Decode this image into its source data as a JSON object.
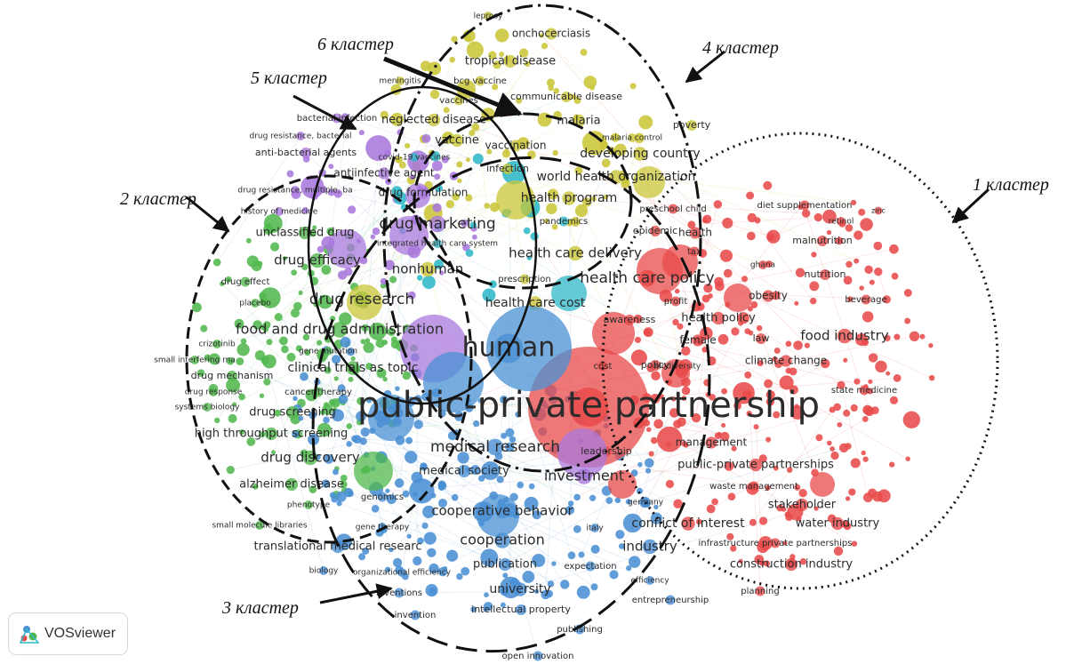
{
  "cluster_labels": {
    "c1": "1 кластер",
    "c2": "2 кластер",
    "c3": "3 кластер",
    "c4": "4 кластер",
    "c5": "5 кластер",
    "c6": "6 кластер"
  },
  "colors": {
    "red": "#e84a4a",
    "green": "#52b84e",
    "blue": "#4a90d4",
    "yellow": "#c9c638",
    "purple": "#a978dc",
    "cyan": "#2fb8c8"
  },
  "logo": {
    "text": "VOSviewer",
    "icon": "vosviewer-logo-icon"
  },
  "terms": [
    {
      "text": "leprosy",
      "c": "yellow",
      "s": 9
    },
    {
      "text": "onchocerciasis",
      "c": "yellow",
      "s": 12
    },
    {
      "text": "tropical disease",
      "c": "yellow",
      "s": 13
    },
    {
      "text": "meningitis",
      "c": "yellow",
      "s": 9
    },
    {
      "text": "bcg vaccine",
      "c": "yellow",
      "s": 10
    },
    {
      "text": "vaccines",
      "c": "yellow",
      "s": 10
    },
    {
      "text": "communicable disease",
      "c": "yellow",
      "s": 11
    },
    {
      "text": "bacterial infection",
      "c": "purple",
      "s": 10
    },
    {
      "text": "neglected disease",
      "c": "yellow",
      "s": 13
    },
    {
      "text": "malaria",
      "c": "yellow",
      "s": 13
    },
    {
      "text": "poverty",
      "c": "yellow",
      "s": 11
    },
    {
      "text": "drug resistance, bacterial",
      "c": "purple",
      "s": 9
    },
    {
      "text": "vaccine",
      "c": "yellow",
      "s": 13
    },
    {
      "text": "vaccination",
      "c": "yellow",
      "s": 12
    },
    {
      "text": "malaria control",
      "c": "yellow",
      "s": 9
    },
    {
      "text": "anti-bacterial agents",
      "c": "purple",
      "s": 11
    },
    {
      "text": "covid-19 vaccines",
      "c": "cyan",
      "s": 9
    },
    {
      "text": "developing country",
      "c": "yellow",
      "s": 14
    },
    {
      "text": "antiinfective agent",
      "c": "purple",
      "s": 12
    },
    {
      "text": "infection",
      "c": "yellow",
      "s": 11
    },
    {
      "text": "world health organization",
      "c": "yellow",
      "s": 14
    },
    {
      "text": "drug resistance, multiple, ba",
      "c": "purple",
      "s": 9
    },
    {
      "text": "drug formulation",
      "c": "purple",
      "s": 12
    },
    {
      "text": "health program",
      "c": "yellow",
      "s": 14
    },
    {
      "text": "history of medicine",
      "c": "purple",
      "s": 9
    },
    {
      "text": "preschool child",
      "c": "red",
      "s": 10
    },
    {
      "text": "diet supplementation",
      "c": "red",
      "s": 10
    },
    {
      "text": "zinc",
      "c": "red",
      "s": 8
    },
    {
      "text": "retinol",
      "c": "red",
      "s": 9
    },
    {
      "text": "drug marketing",
      "c": "purple",
      "s": 17
    },
    {
      "text": "pandemics",
      "c": "cyan",
      "s": 10
    },
    {
      "text": "unclassified drug",
      "c": "green",
      "s": 13
    },
    {
      "text": "integrated health care system",
      "c": "cyan",
      "s": 9
    },
    {
      "text": "epidemic",
      "c": "red",
      "s": 11
    },
    {
      "text": "health",
      "c": "red",
      "s": 12
    },
    {
      "text": "malnutrition",
      "c": "red",
      "s": 11
    },
    {
      "text": "health care delivery",
      "c": "yellow",
      "s": 15
    },
    {
      "text": "tax",
      "c": "red",
      "s": 10
    },
    {
      "text": "drug efficacy",
      "c": "green",
      "s": 15
    },
    {
      "text": "ghana",
      "c": "red",
      "s": 9
    },
    {
      "text": "nonhuman",
      "c": "yellow",
      "s": 15
    },
    {
      "text": "nutrition",
      "c": "red",
      "s": 11
    },
    {
      "text": "health care policy",
      "c": "red",
      "s": 17
    },
    {
      "text": "drug effect",
      "c": "green",
      "s": 10
    },
    {
      "text": "prescription",
      "c": "yellow",
      "s": 10
    },
    {
      "text": "obesity",
      "c": "red",
      "s": 12
    },
    {
      "text": "beverage",
      "c": "red",
      "s": 10
    },
    {
      "text": "profit",
      "c": "red",
      "s": 10
    },
    {
      "text": "drug research",
      "c": "green",
      "s": 17
    },
    {
      "text": "placebo",
      "c": "green",
      "s": 9
    },
    {
      "text": "health care cost",
      "c": "yellow",
      "s": 14
    },
    {
      "text": "awareness",
      "c": "red",
      "s": 11
    },
    {
      "text": "health policy",
      "c": "red",
      "s": 13
    },
    {
      "text": "food and drug administration",
      "c": "green",
      "s": 16
    },
    {
      "text": "food industry",
      "c": "red",
      "s": 15
    },
    {
      "text": "human",
      "c": "blue",
      "s": 30
    },
    {
      "text": "female",
      "c": "red",
      "s": 12
    },
    {
      "text": "law",
      "c": "red",
      "s": 11
    },
    {
      "text": "crizotinib",
      "c": "green",
      "s": 9
    },
    {
      "text": "gene mutation",
      "c": "green",
      "s": 9
    },
    {
      "text": "climate change",
      "c": "red",
      "s": 12
    },
    {
      "text": "small interfering rna",
      "c": "green",
      "s": 9
    },
    {
      "text": "cost",
      "c": "red",
      "s": 10
    },
    {
      "text": "policy",
      "c": "red",
      "s": 11
    },
    {
      "text": "biodiversity",
      "c": "red",
      "s": 9
    },
    {
      "text": "clinical trials as topic",
      "c": "green",
      "s": 14
    },
    {
      "text": "drug mechanism",
      "c": "green",
      "s": 11
    },
    {
      "text": "drug response",
      "c": "green",
      "s": 9
    },
    {
      "text": "cancer therapy",
      "c": "green",
      "s": 10
    },
    {
      "text": "state medicine",
      "c": "red",
      "s": 10
    },
    {
      "text": "systems biology",
      "c": "green",
      "s": 9
    },
    {
      "text": "public-private partnership",
      "c": "red",
      "s": 40
    },
    {
      "text": "drug screening",
      "c": "green",
      "s": 13
    },
    {
      "text": "high throughput screening",
      "c": "green",
      "s": 13
    },
    {
      "text": "management",
      "c": "red",
      "s": 12
    },
    {
      "text": "medical research",
      "c": "blue",
      "s": 17
    },
    {
      "text": "leadership",
      "c": "red",
      "s": 11
    },
    {
      "text": "drug discovery",
      "c": "green",
      "s": 15
    },
    {
      "text": "public-private partnerships",
      "c": "red",
      "s": 13
    },
    {
      "text": "medical society",
      "c": "blue",
      "s": 13
    },
    {
      "text": "investment",
      "c": "purple",
      "s": 16
    },
    {
      "text": "alzheimer disease",
      "c": "green",
      "s": 13
    },
    {
      "text": "waste management",
      "c": "red",
      "s": 10
    },
    {
      "text": "genomics",
      "c": "blue",
      "s": 10
    },
    {
      "text": "phenotype",
      "c": "green",
      "s": 9
    },
    {
      "text": "germany",
      "c": "blue",
      "s": 9
    },
    {
      "text": "stakeholder",
      "c": "red",
      "s": 13
    },
    {
      "text": "cooperative behavior",
      "c": "blue",
      "s": 15
    },
    {
      "text": "conflict of interest",
      "c": "red",
      "s": 14
    },
    {
      "text": "water industry",
      "c": "red",
      "s": 13
    },
    {
      "text": "small molecule libraries",
      "c": "green",
      "s": 9
    },
    {
      "text": "gene therapy",
      "c": "blue",
      "s": 9
    },
    {
      "text": "italy",
      "c": "blue",
      "s": 9
    },
    {
      "text": "cooperation",
      "c": "blue",
      "s": 16
    },
    {
      "text": "translational medical researc",
      "c": "blue",
      "s": 13
    },
    {
      "text": "industry",
      "c": "blue",
      "s": 15
    },
    {
      "text": "infrastructure private partnerships",
      "c": "red",
      "s": 10
    },
    {
      "text": "publication",
      "c": "blue",
      "s": 13
    },
    {
      "text": "biology",
      "c": "blue",
      "s": 9
    },
    {
      "text": "organizational efficiency",
      "c": "blue",
      "s": 9
    },
    {
      "text": "expectation",
      "c": "blue",
      "s": 10
    },
    {
      "text": "construction industry",
      "c": "red",
      "s": 13
    },
    {
      "text": "efficiency",
      "c": "blue",
      "s": 9
    },
    {
      "text": "university",
      "c": "blue",
      "s": 14
    },
    {
      "text": "inventions",
      "c": "blue",
      "s": 10
    },
    {
      "text": "planning",
      "c": "red",
      "s": 10
    },
    {
      "text": "entrepreneurship",
      "c": "blue",
      "s": 10
    },
    {
      "text": "intellectual property",
      "c": "blue",
      "s": 11
    },
    {
      "text": "invention",
      "c": "blue",
      "s": 10
    },
    {
      "text": "publishing",
      "c": "blue",
      "s": 10
    },
    {
      "text": "open innovation",
      "c": "blue",
      "s": 10
    }
  ]
}
